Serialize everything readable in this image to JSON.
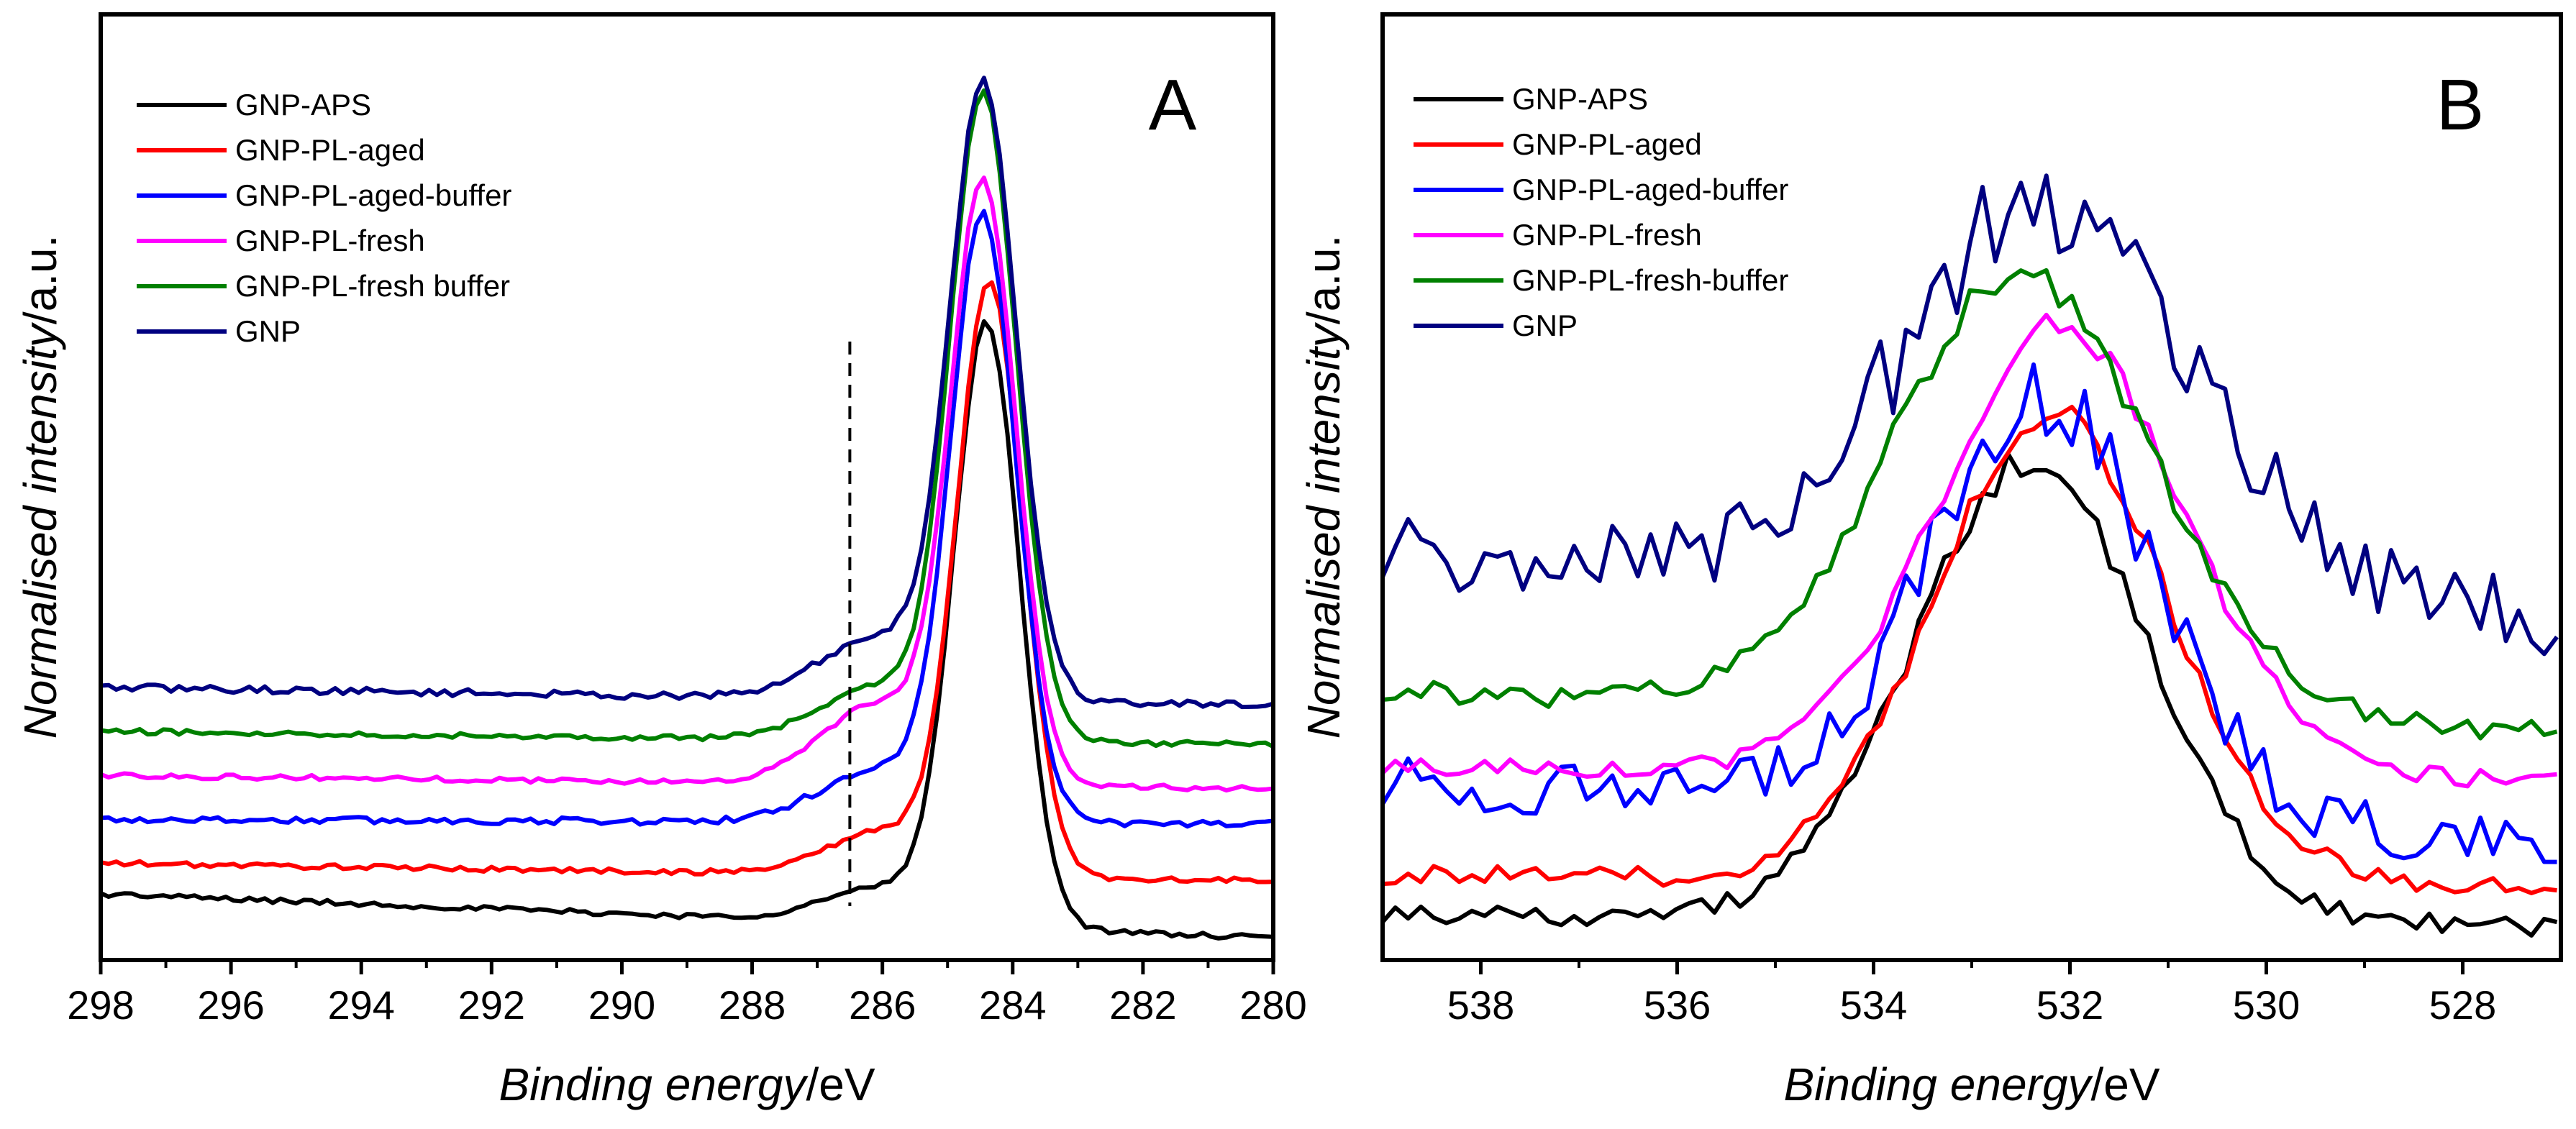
{
  "chart_data": [
    {
      "type": "line",
      "panel": "A",
      "xlabel_italic": "Binding energy",
      "xlabel_unit": "/eV",
      "ylabel_italic": "Normalised intensity",
      "ylabel_unit": "/a.u.",
      "xlim": [
        298,
        280
      ],
      "xticks": [
        "298",
        "296",
        "294",
        "292",
        "290",
        "288",
        "286",
        "284",
        "282",
        "280"
      ],
      "reference_line_x": 286.5,
      "legend_position": "top-left",
      "series": [
        {
          "name": "GNP-APS",
          "color": "#000000",
          "baseline_left": 0.1,
          "baseline_right": 0.0,
          "peak_center": 284.4,
          "peak_height": 1.36,
          "peak_width": 0.55,
          "shoulder": 0.08,
          "noise": 0.006
        },
        {
          "name": "GNP-PL-aged",
          "color": "#ff0000",
          "baseline_left": 0.17,
          "baseline_right": 0.13,
          "peak_center": 284.35,
          "peak_height": 1.33,
          "peak_width": 0.55,
          "shoulder": 0.1,
          "noise": 0.006
        },
        {
          "name": "GNP-PL-aged-buffer",
          "color": "#0000ff",
          "baseline_left": 0.27,
          "baseline_right": 0.26,
          "peak_center": 284.45,
          "peak_height": 1.36,
          "peak_width": 0.55,
          "shoulder": 0.12,
          "noise": 0.008
        },
        {
          "name": "GNP-PL-fresh",
          "color": "#ff00ff",
          "baseline_left": 0.37,
          "baseline_right": 0.34,
          "peak_center": 284.45,
          "peak_height": 1.34,
          "peak_width": 0.55,
          "shoulder": 0.18,
          "noise": 0.006
        },
        {
          "name": "GNP-PL-fresh buffer",
          "color": "#008000",
          "baseline_left": 0.47,
          "baseline_right": 0.44,
          "peak_center": 284.45,
          "peak_height": 1.45,
          "peak_width": 0.56,
          "shoulder": 0.12,
          "noise": 0.006
        },
        {
          "name": "GNP",
          "color": "#000080",
          "baseline_left": 0.57,
          "baseline_right": 0.53,
          "peak_center": 284.45,
          "peak_height": 1.38,
          "peak_width": 0.56,
          "shoulder": 0.14,
          "noise": 0.008
        }
      ]
    },
    {
      "type": "line",
      "panel": "B",
      "xlabel_italic": "Binding energy",
      "xlabel_unit": "/eV",
      "ylabel_italic": "Normalised intensity",
      "ylabel_unit": "/a.u.",
      "xlim": [
        539,
        527
      ],
      "xticks": [
        "538",
        "536",
        "534",
        "532",
        "530",
        "528"
      ],
      "legend_position": "top-left",
      "series": [
        {
          "name": "GNP-APS",
          "color": "#000000",
          "baseline_left": 0.05,
          "baseline_right": 0.02,
          "peak_center": 532.4,
          "peak_height": 0.97,
          "peak_width": 1.3,
          "noise": 0.022
        },
        {
          "name": "GNP-PL-aged",
          "color": "#ff0000",
          "baseline_left": 0.13,
          "baseline_right": 0.1,
          "peak_center": 532.2,
          "peak_height": 1.0,
          "peak_width": 1.3,
          "noise": 0.022
        },
        {
          "name": "GNP-PL-aged-buffer",
          "color": "#0000ff",
          "baseline_left": 0.33,
          "baseline_right": 0.2,
          "peak_center": 532.3,
          "peak_height": 0.88,
          "peak_width": 1.25,
          "noise": 0.06
        },
        {
          "name": "GNP-PL-fresh",
          "color": "#ff00ff",
          "baseline_left": 0.36,
          "baseline_right": 0.33,
          "peak_center": 532.1,
          "peak_height": 0.95,
          "peak_width": 1.35,
          "noise": 0.018
        },
        {
          "name": "GNP-PL-fresh-buffer",
          "color": "#008000",
          "baseline_left": 0.52,
          "baseline_right": 0.43,
          "peak_center": 532.5,
          "peak_height": 0.93,
          "peak_width": 1.45,
          "noise": 0.025
        },
        {
          "name": "GNP",
          "color": "#000080",
          "baseline_left": 0.82,
          "baseline_right": 0.67,
          "peak_center": 532.2,
          "peak_height": 0.82,
          "peak_width": 1.6,
          "noise": 0.08
        }
      ]
    }
  ]
}
